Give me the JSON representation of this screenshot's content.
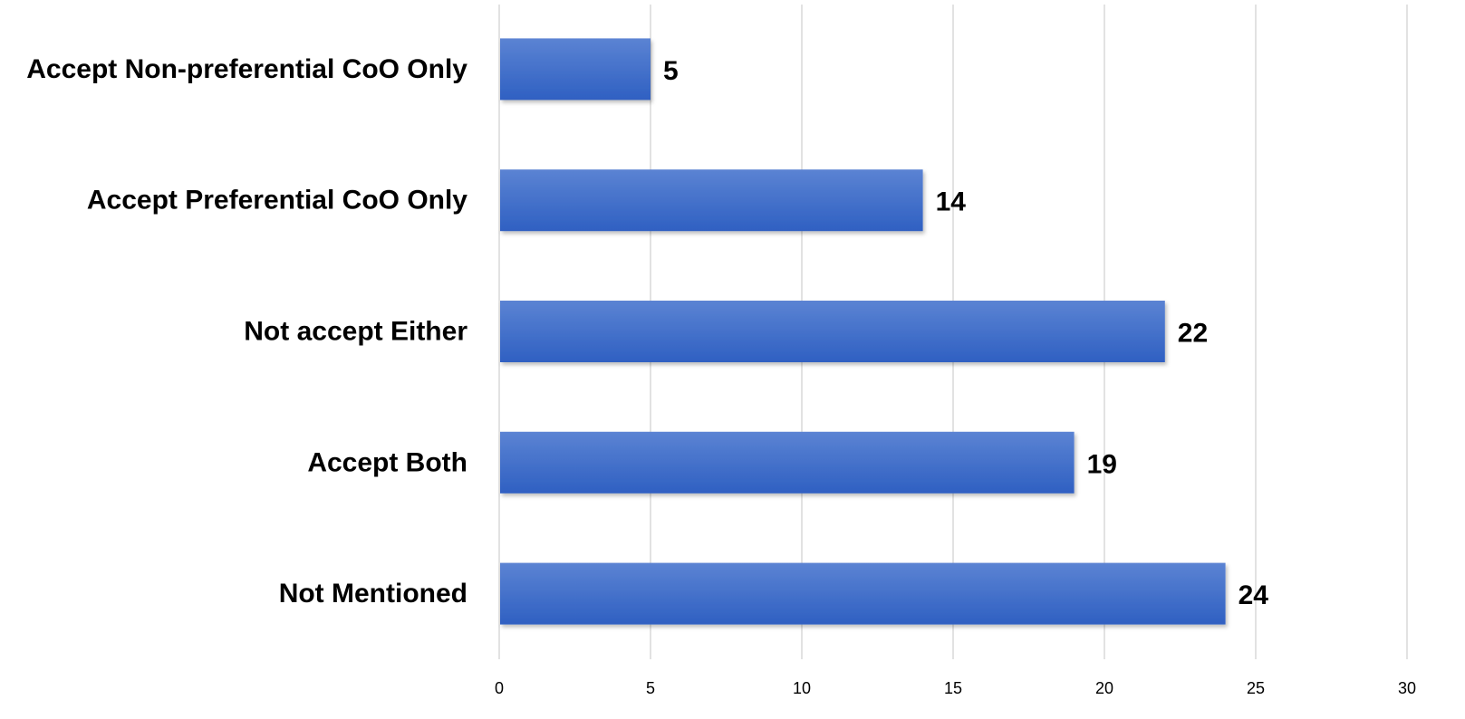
{
  "chart_data": {
    "type": "bar",
    "orientation": "horizontal",
    "categories": [
      "Accept Non-preferential CoO Only",
      "Accept Preferential CoO Only",
      "Not accept Either",
      "Accept Both",
      "Not Mentioned"
    ],
    "values": [
      5,
      14,
      22,
      19,
      24
    ],
    "title": "",
    "xlabel": "",
    "ylabel": "",
    "xlim": [
      0,
      30
    ],
    "xticks": [
      0,
      5,
      10,
      15,
      20,
      25,
      30
    ],
    "xtick_labels": [
      "0",
      "5",
      "10",
      "15",
      "20",
      "25",
      "30"
    ],
    "data_labels": [
      "5",
      "14",
      "22",
      "19",
      "24"
    ],
    "grid": "vertical",
    "legend": "none",
    "colors": {
      "bar_top": "#5b83d3",
      "bar_bottom": "#2f60c2",
      "grid": "#d9d9d9"
    }
  }
}
